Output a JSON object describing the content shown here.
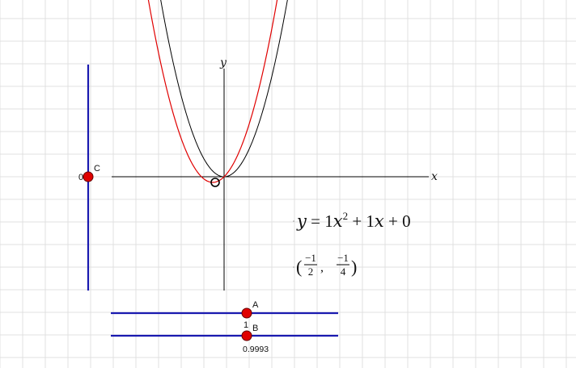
{
  "axes": {
    "x_label": "x",
    "y_label": "y"
  },
  "equation": {
    "prefix": "y = ",
    "a": "1",
    "x2": "x",
    "exp": "2",
    "plus1": " + ",
    "b": "1",
    "x1": "x",
    "plus2": " + ",
    "c": "0"
  },
  "vertex": {
    "x_num": "−1",
    "x_den": "2",
    "y_num": "−1",
    "y_den": "4"
  },
  "sliders": {
    "a": {
      "name": "A",
      "value": "1"
    },
    "b": {
      "name": "B",
      "value": "0.9993"
    },
    "c": {
      "name": "C",
      "value": "0"
    }
  },
  "colors": {
    "axis": "#000000",
    "slider_line": "#1a1ab0",
    "point_fill": "#e00000",
    "curve_black": "#000000",
    "curve_red": "#e00000",
    "grid": "#e1e1e1"
  },
  "icons": [
    "vertex-marker-icon"
  ]
}
